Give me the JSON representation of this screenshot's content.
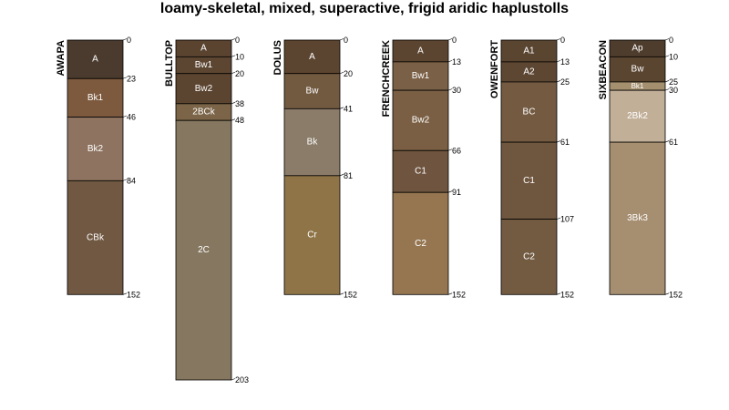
{
  "title": "loamy-skeletal, mixed, superactive, frigid aridic haplustolls",
  "profiles": [
    {
      "name": "AWAPA",
      "bottom": 152,
      "horizons": [
        {
          "name": "A",
          "top": 0,
          "bottom": 23,
          "color": "#4a3b2e"
        },
        {
          "name": "Bk1",
          "top": 23,
          "bottom": 46,
          "color": "#7d5a3e"
        },
        {
          "name": "Bk2",
          "top": 46,
          "bottom": 84,
          "color": "#8e7460"
        },
        {
          "name": "CBk",
          "top": 84,
          "bottom": 152,
          "color": "#705842"
        }
      ]
    },
    {
      "name": "BULLTOP",
      "bottom": 203,
      "horizons": [
        {
          "name": "A",
          "top": 0,
          "bottom": 10,
          "color": "#5a4430"
        },
        {
          "name": "Bw1",
          "top": 10,
          "bottom": 20,
          "color": "#5c4632"
        },
        {
          "name": "Bw2",
          "top": 20,
          "bottom": 38,
          "color": "#5b4430"
        },
        {
          "name": "2BCk",
          "top": 38,
          "bottom": 48,
          "color": "#7b6447"
        },
        {
          "name": "2C",
          "top": 48,
          "bottom": 203,
          "color": "#857760"
        }
      ]
    },
    {
      "name": "DOLUS",
      "bottom": 152,
      "horizons": [
        {
          "name": "A",
          "top": 0,
          "bottom": 20,
          "color": "#5c4530"
        },
        {
          "name": "Bw",
          "top": 20,
          "bottom": 41,
          "color": "#725a40"
        },
        {
          "name": "Bk",
          "top": 41,
          "bottom": 81,
          "color": "#8a7c68"
        },
        {
          "name": "Cr",
          "top": 81,
          "bottom": 152,
          "color": "#8f7448"
        }
      ]
    },
    {
      "name": "FRENCHCREEK",
      "bottom": 152,
      "horizons": [
        {
          "name": "A",
          "top": 0,
          "bottom": 13,
          "color": "#5c4530"
        },
        {
          "name": "Bw1",
          "top": 13,
          "bottom": 30,
          "color": "#7a6046"
        },
        {
          "name": "Bw2",
          "top": 30,
          "bottom": 66,
          "color": "#7a5f44"
        },
        {
          "name": "C1",
          "top": 66,
          "bottom": 91,
          "color": "#6f5540"
        },
        {
          "name": "C2",
          "top": 91,
          "bottom": 152,
          "color": "#957651"
        }
      ]
    },
    {
      "name": "OWENFORT",
      "bottom": 152,
      "horizons": [
        {
          "name": "A1",
          "top": 0,
          "bottom": 13,
          "color": "#5a4531"
        },
        {
          "name": "A2",
          "top": 13,
          "bottom": 25,
          "color": "#5d4733"
        },
        {
          "name": "BC",
          "top": 25,
          "bottom": 61,
          "color": "#735a41"
        },
        {
          "name": "C1",
          "top": 61,
          "bottom": 107,
          "color": "#6f563f"
        },
        {
          "name": "C2",
          "top": 107,
          "bottom": 152,
          "color": "#735b42"
        }
      ]
    },
    {
      "name": "SIXBEACON",
      "bottom": 152,
      "horizons": [
        {
          "name": "Ap",
          "top": 0,
          "bottom": 10,
          "color": "#4e3c2d"
        },
        {
          "name": "Bw",
          "top": 10,
          "bottom": 25,
          "color": "#5a4530"
        },
        {
          "name": "Bk1",
          "top": 25,
          "bottom": 30,
          "color": "#a4906e"
        },
        {
          "name": "2Bk2",
          "top": 30,
          "bottom": 61,
          "color": "#c1af98"
        },
        {
          "name": "3Bk3",
          "top": 61,
          "bottom": 152,
          "color": "#a68e70"
        }
      ]
    }
  ]
}
